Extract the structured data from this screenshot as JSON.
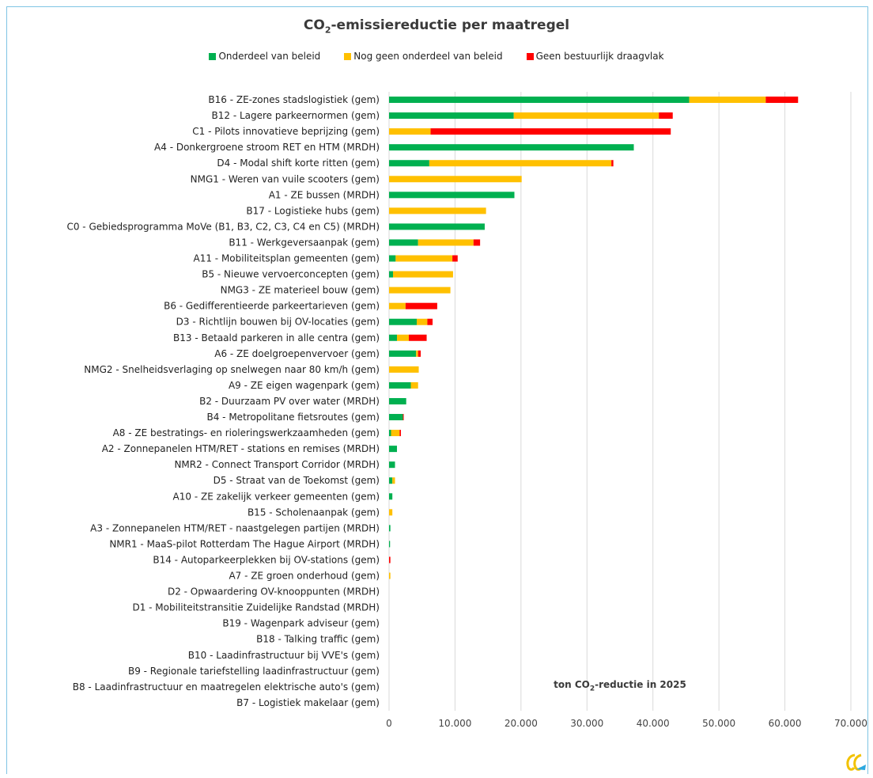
{
  "chart_data": {
    "type": "bar",
    "orientation": "horizontal",
    "stacked": true,
    "title_main": "CO",
    "title_sub": "2",
    "title_rest": "-emissiereductie per maatregel",
    "xlabel_main": "ton CO",
    "xlabel_sub": "2",
    "xlabel_rest": "-reductie in 2025",
    "xlim": [
      0,
      70000
    ],
    "xticks": [
      0,
      10000,
      20000,
      30000,
      40000,
      50000,
      60000,
      70000
    ],
    "xtick_labels": [
      "0",
      "10.000",
      "20.000",
      "30.000",
      "40.000",
      "50.000",
      "60.000",
      "70.000"
    ],
    "grid": "vertical",
    "legend_position": "top",
    "categories": [
      "B16 - ZE-zones stadslogistiek (gem)",
      "B12 - Lagere parkeernormen (gem)",
      "C1 - Pilots innovatieve beprijzing (gem)",
      "A4 - Donkergroene stroom RET en HTM (MRDH)",
      "D4 - Modal shift korte ritten (gem)",
      "NMG1 - Weren van vuile scooters (gem)",
      "A1 - ZE bussen (MRDH)",
      "B17 - Logistieke hubs (gem)",
      "C0 - Gebiedsprogramma MoVe (B1, B3, C2, C3, C4 en C5) (MRDH)",
      "B11 - Werkgeversaanpak (gem)",
      "A11 - Mobiliteitsplan gemeenten (gem)",
      "B5 - Nieuwe vervoerconcepten (gem)",
      "NMG3 - ZE materieel bouw (gem)",
      "B6 - Gedifferentieerde parkeertarieven (gem)",
      "D3 - Richtlijn bouwen bij OV-locaties (gem)",
      "B13 - Betaald parkeren in alle centra (gem)",
      "A6 - ZE doelgroepenvervoer (gem)",
      "NMG2 - Snelheidsverlaging op snelwegen naar 80 km/h (gem)",
      "A9 - ZE eigen wagenpark (gem)",
      "B2 - Duurzaam PV over water (MRDH)",
      "B4 - Metropolitane fietsroutes (gem)",
      "A8 - ZE bestratings- en rioleringswerkzaamheden (gem)",
      "A2 - Zonnepanelen HTM/RET - stations en remises (MRDH)",
      "NMR2 - Connect Transport Corridor (MRDH)",
      "D5 - Straat van de Toekomst (gem)",
      "A10 - ZE zakelijk verkeer gemeenten (gem)",
      "B15 - Scholenaanpak (gem)",
      "A3 - Zonnepanelen HTM/RET - naastgelegen partijen (MRDH)",
      "NMR1 - MaaS-pilot Rotterdam The Hague Airport (MRDH)",
      "B14 - Autoparkeerplekken bij OV-stations (gem)",
      "A7 - ZE groen onderhoud (gem)",
      "D2 - Opwaardering OV-knooppunten (MRDH)",
      "D1 - Mobiliteitstransitie Zuidelijke Randstad (MRDH)",
      "B19 - Wagenpark adviseur (gem)",
      "B18 - Talking traffic (gem)",
      "B10 - Laadinfrastructuur bij VVE's (gem)",
      "B9 - Regionale tariefstelling laadinfrastructuur (gem)",
      "B8 - Laadinfrastructuur en maatregelen elektrische auto's (gem)",
      "B7 - Logistiek makelaar (gem)"
    ],
    "series": [
      {
        "name": "Onderdeel van beleid",
        "color": "#00b050",
        "values": [
          45500,
          18900,
          0,
          37100,
          6100,
          0,
          19000,
          0,
          14500,
          4400,
          1000,
          600,
          0,
          0,
          4200,
          1200,
          4100,
          0,
          3300,
          2600,
          2100,
          300,
          1200,
          900,
          500,
          500,
          0,
          200,
          150,
          0,
          0,
          0,
          0,
          0,
          0,
          0,
          0,
          0,
          0
        ]
      },
      {
        "name": "Nog geen onderdeel van beleid",
        "color": "#ffc000",
        "values": [
          11600,
          22000,
          6300,
          0,
          27600,
          20100,
          0,
          14700,
          0,
          8400,
          8600,
          9100,
          9300,
          2500,
          1600,
          1800,
          300,
          4500,
          1100,
          0,
          0,
          1300,
          0,
          0,
          400,
          0,
          500,
          0,
          0,
          0,
          200,
          0,
          0,
          0,
          0,
          0,
          0,
          0,
          0
        ]
      },
      {
        "name": "Geen bestuurlijk draagvlak",
        "color": "#ff0000",
        "values": [
          4900,
          2100,
          36400,
          0,
          300,
          0,
          0,
          0,
          0,
          1000,
          800,
          0,
          0,
          4800,
          800,
          2700,
          400,
          0,
          0,
          0,
          100,
          200,
          0,
          0,
          0,
          0,
          0,
          0,
          0,
          200,
          0,
          0,
          0,
          0,
          0,
          0,
          0,
          0,
          0
        ]
      }
    ]
  }
}
